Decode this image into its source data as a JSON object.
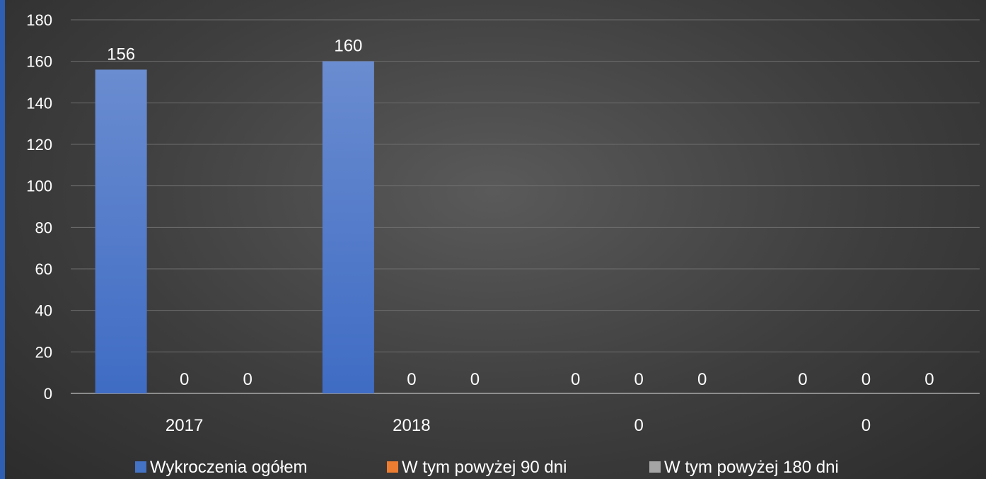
{
  "chart_data": {
    "type": "bar",
    "categories": [
      "2017",
      "2018",
      "0",
      "0"
    ],
    "series": [
      {
        "name": "Wykroczenia ogółem",
        "values": [
          156,
          160,
          0,
          0
        ],
        "color": "#4472c4"
      },
      {
        "name": "W tym powyżej 90 dni",
        "values": [
          0,
          0,
          0,
          0
        ],
        "color": "#ed7d31"
      },
      {
        "name": "W tym powyżej 180 dni",
        "values": [
          0,
          0,
          0,
          0
        ],
        "color": "#a5a5a5"
      }
    ],
    "title": "",
    "xlabel": "",
    "ylabel": "",
    "ylim": [
      0,
      180
    ],
    "yticks": [
      0,
      20,
      40,
      60,
      80,
      100,
      120,
      140,
      160,
      180
    ],
    "grid": true,
    "legend_position": "bottom",
    "data_labels": true
  }
}
